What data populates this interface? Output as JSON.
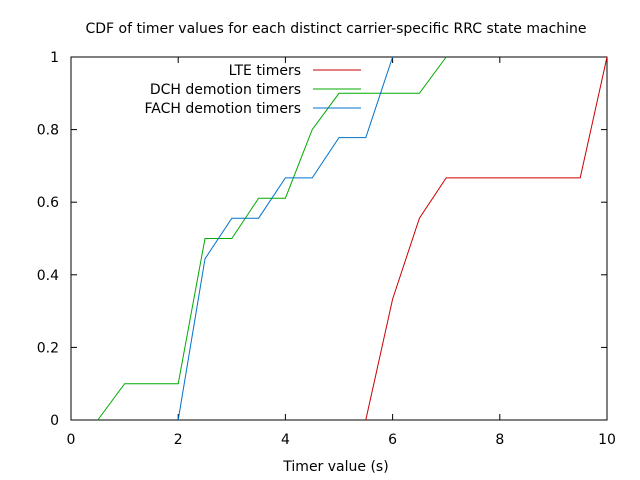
{
  "chart_data": {
    "type": "line",
    "title": "CDF of timer values for each distinct carrier-specific RRC state machine",
    "xlabel": "Timer value (s)",
    "ylabel": "",
    "xlim": [
      0,
      10
    ],
    "ylim": [
      0,
      1
    ],
    "xticks": [
      "0",
      "2",
      "4",
      "6",
      "8",
      "10"
    ],
    "yticks": [
      "0",
      "0.2",
      "0.4",
      "0.6",
      "0.8",
      "1"
    ],
    "grid": false,
    "legend_position": "top-left",
    "series": [
      {
        "name": "LTE timers",
        "color": "#cc0000",
        "x": [
          5.5,
          6.0,
          6.5,
          7.0,
          9.5,
          10.0
        ],
        "y": [
          0.0,
          0.333,
          0.556,
          0.667,
          0.667,
          1.0
        ]
      },
      {
        "name": "DCH demotion timers",
        "color": "#00aa00",
        "x": [
          0.5,
          1.0,
          2.0,
          2.5,
          3.0,
          3.5,
          4.0,
          4.5,
          5.0,
          6.5,
          7.0
        ],
        "y": [
          0.0,
          0.1,
          0.1,
          0.5,
          0.5,
          0.611,
          0.611,
          0.8,
          0.9,
          0.9,
          1.0
        ]
      },
      {
        "name": "FACH demotion timers",
        "color": "#0072cc",
        "x": [
          2.0,
          2.5,
          3.0,
          3.5,
          4.0,
          4.5,
          5.0,
          5.5,
          6.0
        ],
        "y": [
          0.0,
          0.444,
          0.556,
          0.556,
          0.667,
          0.667,
          0.778,
          0.778,
          1.0
        ]
      }
    ]
  }
}
